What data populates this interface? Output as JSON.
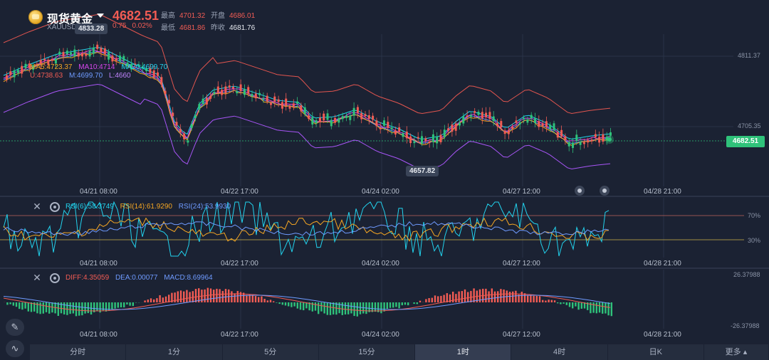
{
  "header": {
    "title": "现货黄金",
    "code": "XAUUSD",
    "price": "4682.51",
    "change": "0.75",
    "change_pct": "0.02%",
    "high_label": "最高",
    "high": "4701.32",
    "open_label": "开盘",
    "open": "4686.01",
    "low_label": "最低",
    "low": "4681.86",
    "prev_close_label": "昨收",
    "prev_close": "4681.76"
  },
  "main_chart": {
    "ma_legend": {
      "ma5": "MA5:4723.37",
      "ma10": "MA10:4714",
      "ma20": "MA20:4699.70"
    },
    "boll_legend": {
      "u": "U:4738.63",
      "m": "M:4699.70",
      "l": "L:4660"
    },
    "y_labels": [
      "4811.37",
      "4705.35"
    ],
    "current_price_tag": "4682.51",
    "high_marker": "4833.28",
    "low_marker": "4657.82"
  },
  "x_labels": [
    "04/21 08:00",
    "04/22 17:00",
    "04/24 02:00",
    "04/27 12:00",
    "04/28 21:00"
  ],
  "rsi_panel": {
    "rsi6": "RSI(6):58.3749",
    "rsi14": "RSI(14):61.9290",
    "rsi24": "RSI(24):53.9930",
    "levels": [
      "70%",
      "30%"
    ]
  },
  "macd_panel": {
    "diff": "DIFF:4.35059",
    "dea": "DEA:0.00077",
    "macd": "MACD:8.69964",
    "y_labels": [
      "26.37988",
      "-26.37988"
    ]
  },
  "tabs": [
    "分时",
    "1分",
    "5分",
    "15分",
    "1时",
    "4时",
    "日K",
    "更多"
  ],
  "active_tab": "1时",
  "colors": {
    "up": "#f25c54",
    "down": "#2fc27a",
    "ma5": "#f5a623",
    "ma10": "#d946ef",
    "ma20": "#22d3ee",
    "boll_u": "#e2554f",
    "boll_m": "#5b8cff",
    "boll_l": "#a855f7"
  }
}
